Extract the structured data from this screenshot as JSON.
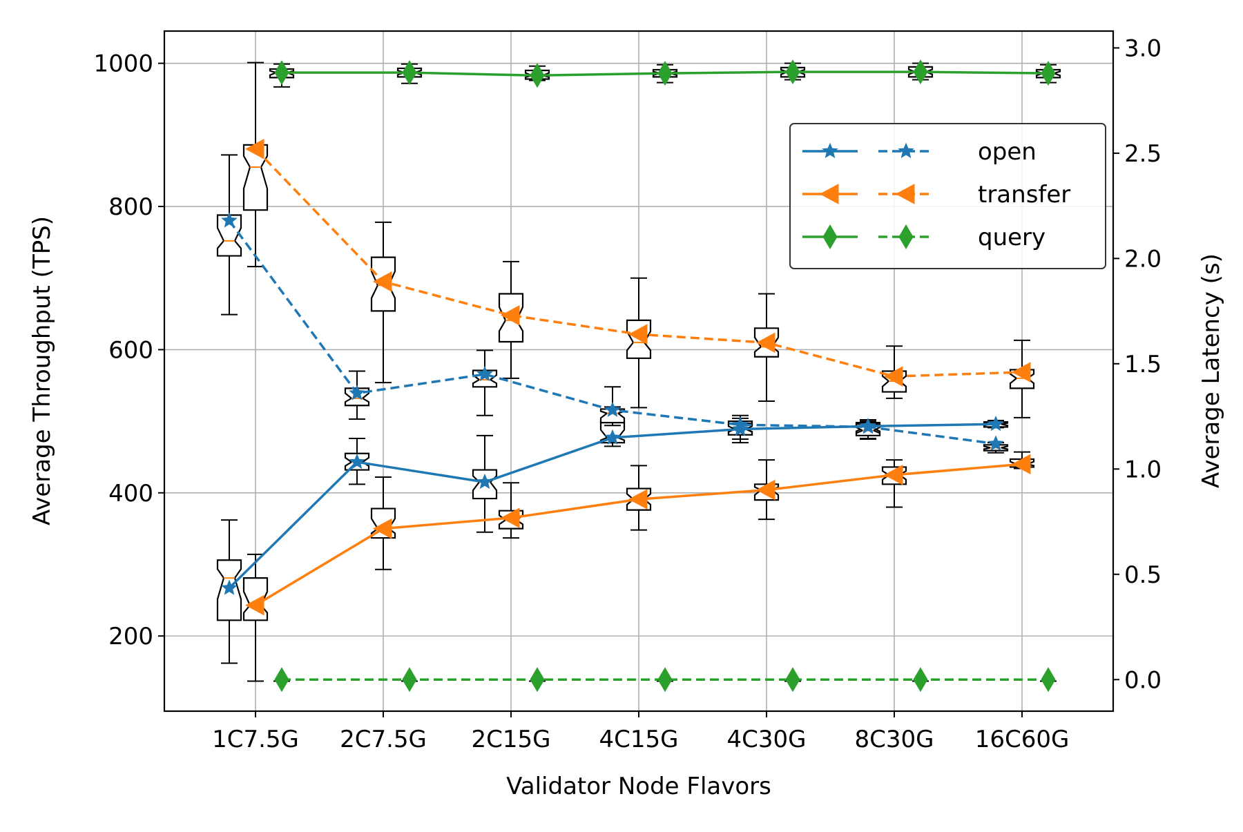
{
  "chart_data": {
    "type": "line",
    "title": "",
    "xlabel": "Validator Node Flavors",
    "ylabel": "Average Throughput (TPS)",
    "y2label": "Average Latency (s)",
    "categories": [
      "1C7.5G",
      "2C7.5G",
      "2C15G",
      "4C15G",
      "4C30G",
      "8C30G",
      "16C60G"
    ],
    "ylim": [
      95,
      1045
    ],
    "y_ticks": [
      200,
      400,
      600,
      800,
      1000
    ],
    "y2lim": [
      -0.15,
      3.08
    ],
    "y2_ticks": [
      0.0,
      0.5,
      1.0,
      1.5,
      2.0,
      2.5,
      3.0
    ],
    "grid": true,
    "legend_position": "top-right",
    "legend": [
      "open",
      "transfer",
      "query"
    ],
    "colors": {
      "open": "#1f77b4",
      "transfer": "#ff7f0e",
      "query": "#2ca02c",
      "box": "#000000"
    },
    "series": [
      {
        "name": "open",
        "axis": "throughput",
        "style": "solid",
        "marker": "star",
        "values": [
          267,
          443,
          415,
          477,
          489,
          493,
          496
        ]
      },
      {
        "name": "transfer",
        "axis": "throughput",
        "style": "solid",
        "marker": "triangle-left",
        "values": [
          243,
          350,
          365,
          391,
          404,
          425,
          440
        ]
      },
      {
        "name": "query",
        "axis": "throughput",
        "style": "solid",
        "marker": "diamond",
        "values": [
          987,
          987,
          983,
          986,
          988,
          988,
          986
        ]
      },
      {
        "name": "open",
        "axis": "latency",
        "style": "dashed",
        "marker": "star",
        "values": [
          2.18,
          1.36,
          1.45,
          1.28,
          1.21,
          1.2,
          1.12
        ]
      },
      {
        "name": "transfer",
        "axis": "latency",
        "style": "dashed",
        "marker": "triangle-left",
        "values": [
          2.52,
          1.89,
          1.73,
          1.64,
          1.6,
          1.44,
          1.46
        ]
      },
      {
        "name": "query",
        "axis": "latency",
        "style": "dashed",
        "marker": "diamond",
        "values": [
          0.0,
          0.0,
          0.0,
          0.0,
          0.0,
          0.0,
          0.0
        ]
      }
    ],
    "boxplots": [
      {
        "series": "open",
        "category": "1C7.5G",
        "min": 162,
        "q1": 222,
        "median": 281,
        "q3": 306,
        "max": 362
      },
      {
        "series": "transfer",
        "category": "1C7.5G",
        "min": 137,
        "q1": 222,
        "median": 243,
        "q3": 281,
        "max": 314
      },
      {
        "series": "query",
        "category": "1C7.5G",
        "min": 967,
        "q1": 980,
        "median": 987,
        "q3": 992,
        "max": 999
      },
      {
        "series": "open",
        "category": "1C7.5G",
        "min": 649,
        "q1": 731,
        "median": 752,
        "q3": 788,
        "max": 872
      },
      {
        "series": "transfer",
        "category": "1C7.5G",
        "min": 716,
        "q1": 795,
        "median": 855,
        "q3": 886,
        "max": 1001
      },
      {
        "series": "query",
        "category": "1C7.5G",
        "min": 137,
        "q1": 137,
        "median": 137,
        "q3": 137,
        "max": 137
      },
      {
        "series": "open",
        "category": "2C7.5G",
        "min": 412,
        "q1": 432,
        "median": 443,
        "q3": 455,
        "max": 476
      },
      {
        "series": "transfer",
        "category": "2C7.5G",
        "min": 293,
        "q1": 337,
        "median": 350,
        "q3": 378,
        "max": 422
      },
      {
        "series": "query",
        "category": "2C7.5G",
        "min": 972,
        "q1": 981,
        "median": 987,
        "q3": 993,
        "max": 999
      },
      {
        "series": "open",
        "category": "2C7.5G",
        "min": 503,
        "q1": 522,
        "median": 532,
        "q3": 546,
        "max": 570
      },
      {
        "series": "transfer",
        "category": "2C7.5G",
        "min": 554,
        "q1": 654,
        "median": 690,
        "q3": 729,
        "max": 778
      },
      {
        "series": "query",
        "category": "2C7.5G",
        "min": 137,
        "q1": 137,
        "median": 137,
        "q3": 137,
        "max": 137
      },
      {
        "series": "open",
        "category": "2C15G",
        "min": 345,
        "q1": 392,
        "median": 415,
        "q3": 432,
        "max": 480
      },
      {
        "series": "transfer",
        "category": "2C15G",
        "min": 337,
        "q1": 350,
        "median": 362,
        "q3": 375,
        "max": 414
      },
      {
        "series": "query",
        "category": "2C15G",
        "min": 976,
        "q1": 978,
        "median": 983,
        "q3": 990,
        "max": 996
      },
      {
        "series": "open",
        "category": "2C15G",
        "min": 508,
        "q1": 548,
        "median": 558,
        "q3": 571,
        "max": 599
      },
      {
        "series": "transfer",
        "category": "2C15G",
        "min": 560,
        "q1": 611,
        "median": 641,
        "q3": 678,
        "max": 723
      },
      {
        "series": "query",
        "category": "2C15G",
        "min": 137,
        "q1": 137,
        "median": 137,
        "q3": 137,
        "max": 137
      },
      {
        "series": "open",
        "category": "4C15G",
        "min": 465,
        "q1": 470,
        "median": 477,
        "q3": 499,
        "max": 520
      },
      {
        "series": "transfer",
        "category": "4C15G",
        "min": 348,
        "q1": 376,
        "median": 391,
        "q3": 406,
        "max": 438
      },
      {
        "series": "query",
        "category": "4C15G",
        "min": 973,
        "q1": 981,
        "median": 986,
        "q3": 991,
        "max": 998
      },
      {
        "series": "open",
        "category": "4C15G",
        "min": 494,
        "q1": 498,
        "median": 511,
        "q3": 517,
        "max": 548
      },
      {
        "series": "transfer",
        "category": "4C15G",
        "min": 519,
        "q1": 588,
        "median": 610,
        "q3": 641,
        "max": 700
      },
      {
        "series": "query",
        "category": "4C15G",
        "min": 137,
        "q1": 137,
        "median": 137,
        "q3": 137,
        "max": 137
      },
      {
        "series": "open",
        "category": "4C30G",
        "min": 470,
        "q1": 482,
        "median": 489,
        "q3": 500,
        "max": 508
      },
      {
        "series": "transfer",
        "category": "4C30G",
        "min": 363,
        "q1": 390,
        "median": 404,
        "q3": 412,
        "max": 446
      },
      {
        "series": "query",
        "category": "4C30G",
        "min": 977,
        "q1": 981,
        "median": 988,
        "q3": 994,
        "max": 1000
      },
      {
        "series": "open",
        "category": "4C30G",
        "min": 475,
        "q1": 481,
        "median": 489,
        "q3": 497,
        "max": 504
      },
      {
        "series": "transfer",
        "category": "4C30G",
        "min": 528,
        "q1": 590,
        "median": 604,
        "q3": 630,
        "max": 678
      },
      {
        "series": "query",
        "category": "4C30G",
        "min": 137,
        "q1": 137,
        "median": 137,
        "q3": 137,
        "max": 137
      },
      {
        "series": "open",
        "category": "8C30G",
        "min": 475,
        "q1": 482,
        "median": 490,
        "q3": 498,
        "max": 502
      },
      {
        "series": "transfer",
        "category": "8C30G",
        "min": 380,
        "q1": 412,
        "median": 425,
        "q3": 436,
        "max": 446
      },
      {
        "series": "query",
        "category": "8C30G",
        "min": 977,
        "q1": 981,
        "median": 988,
        "q3": 995,
        "max": 1000
      },
      {
        "series": "open",
        "category": "8C30G",
        "min": 476,
        "q1": 480,
        "median": 487,
        "q3": 496,
        "max": 500
      },
      {
        "series": "transfer",
        "category": "8C30G",
        "min": 532,
        "q1": 541,
        "median": 556,
        "q3": 570,
        "max": 605
      },
      {
        "series": "query",
        "category": "8C30G",
        "min": 137,
        "q1": 137,
        "median": 137,
        "q3": 137,
        "max": 137
      },
      {
        "series": "open",
        "category": "16C60G",
        "min": 491,
        "q1": 492,
        "median": 496,
        "q3": 499,
        "max": 501
      },
      {
        "series": "transfer",
        "category": "16C60G",
        "min": 434,
        "q1": 436,
        "median": 440,
        "q3": 447,
        "max": 457
      },
      {
        "series": "query",
        "category": "16C60G",
        "min": 973,
        "q1": 980,
        "median": 986,
        "q3": 991,
        "max": 998
      },
      {
        "series": "open",
        "category": "16C60G",
        "min": 456,
        "q1": 459,
        "median": 463,
        "q3": 467,
        "max": 470
      },
      {
        "series": "transfer",
        "category": "16C60G",
        "min": 505,
        "q1": 546,
        "median": 560,
        "q3": 572,
        "max": 613
      },
      {
        "series": "query",
        "category": "16C60G",
        "min": 137,
        "q1": 137,
        "median": 137,
        "q3": 137,
        "max": 137
      }
    ]
  }
}
